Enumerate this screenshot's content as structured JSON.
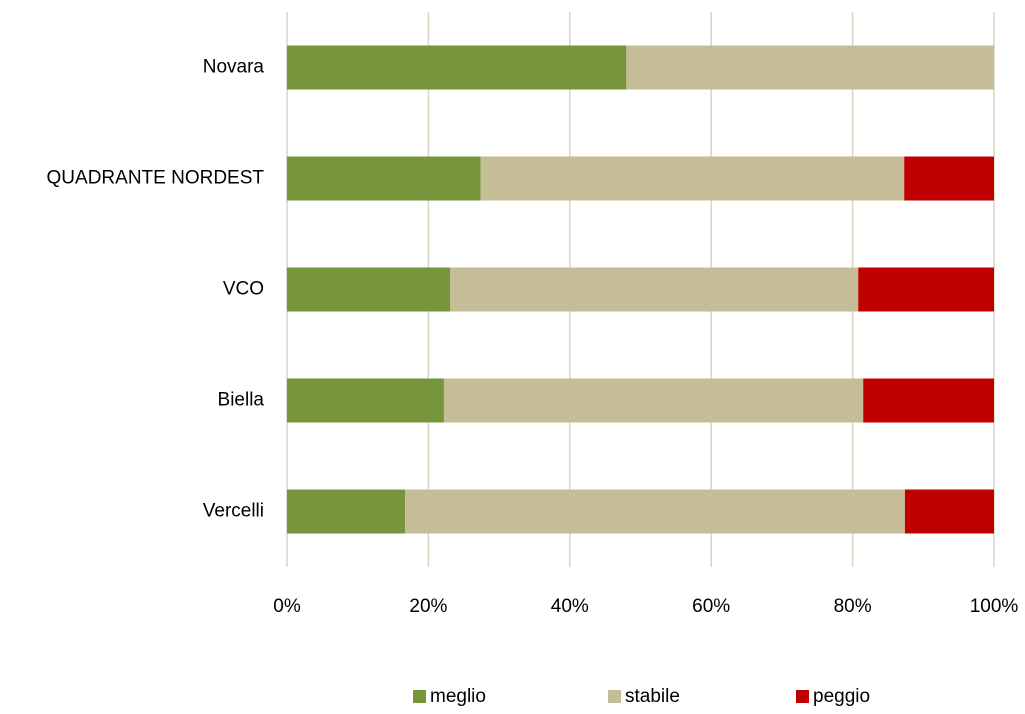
{
  "chart_data": {
    "type": "stacked_barh",
    "categories": [
      "Novara",
      "QUADRANTE NORDEST",
      "VCO",
      "Biella",
      "Vercelli"
    ],
    "series": [
      {
        "name": "meglio",
        "color": "#77963b",
        "values": [
          48,
          27.4,
          23.1,
          22.2,
          16.7
        ]
      },
      {
        "name": "stabile",
        "color": "#c4bd97",
        "values": [
          52,
          59.9,
          57.7,
          59.3,
          70.7
        ]
      },
      {
        "name": "peggio",
        "color": "#c00000",
        "values": [
          0,
          12.7,
          19.2,
          18.5,
          12.6
        ]
      }
    ],
    "xlim": [
      0,
      100
    ],
    "xticks": [
      {
        "value": 0,
        "label": "0%"
      },
      {
        "value": 20,
        "label": "20%"
      },
      {
        "value": 40,
        "label": "40%"
      },
      {
        "value": 60,
        "label": "60%"
      },
      {
        "value": 80,
        "label": "80%"
      },
      {
        "value": 100,
        "label": "100%"
      }
    ],
    "grid": true,
    "legend": "bottom"
  }
}
